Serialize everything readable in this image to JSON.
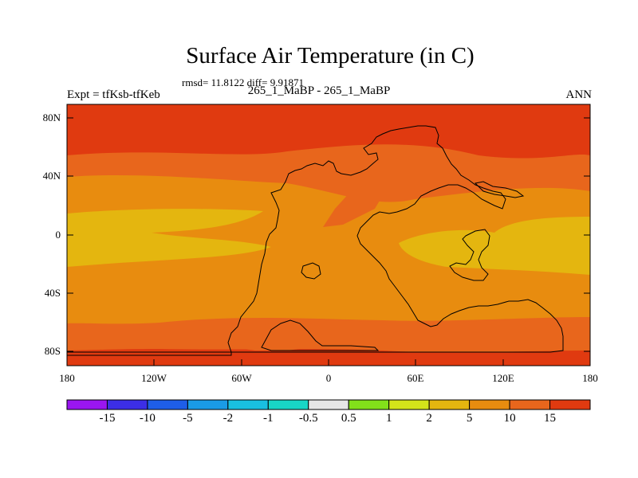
{
  "title": "Surface Air Temperature (in C)",
  "stats": "rmsd= 11.8122 diff= 9.91871",
  "expt_label": "Expt = tfKsb-tfKeb",
  "subtitle": "265_1_MaBP - 265_1_MaBP",
  "season": "ANN",
  "map": {
    "lat_ticks": [
      "80N",
      "40N",
      "0",
      "40S",
      "80S"
    ],
    "lon_ticks": [
      "180",
      "120W",
      "60W",
      "0",
      "60E",
      "120E",
      "180"
    ],
    "lon_range": [
      -180,
      180
    ],
    "lat_range": [
      -90,
      90
    ]
  },
  "colorbar": {
    "labels": [
      "-15",
      "-10",
      "-5",
      "-2",
      "-1",
      "-0.5",
      "0.5",
      "1",
      "2",
      "5",
      "10",
      "15"
    ],
    "colors": [
      "#9a16f0",
      "#3c2ee6",
      "#1e5ee8",
      "#1a9be6",
      "#19c0e0",
      "#18d6c6",
      "#e6e6e6",
      "#82e01a",
      "#d4e41a",
      "#e4b60f",
      "#e88c0f",
      "#e8661c",
      "#e03a10"
    ]
  },
  "fills": {
    "polar": "#e03a10",
    "warm": "#e8661c",
    "mid": "#e88c0f",
    "tropic": "#e4b60f"
  }
}
